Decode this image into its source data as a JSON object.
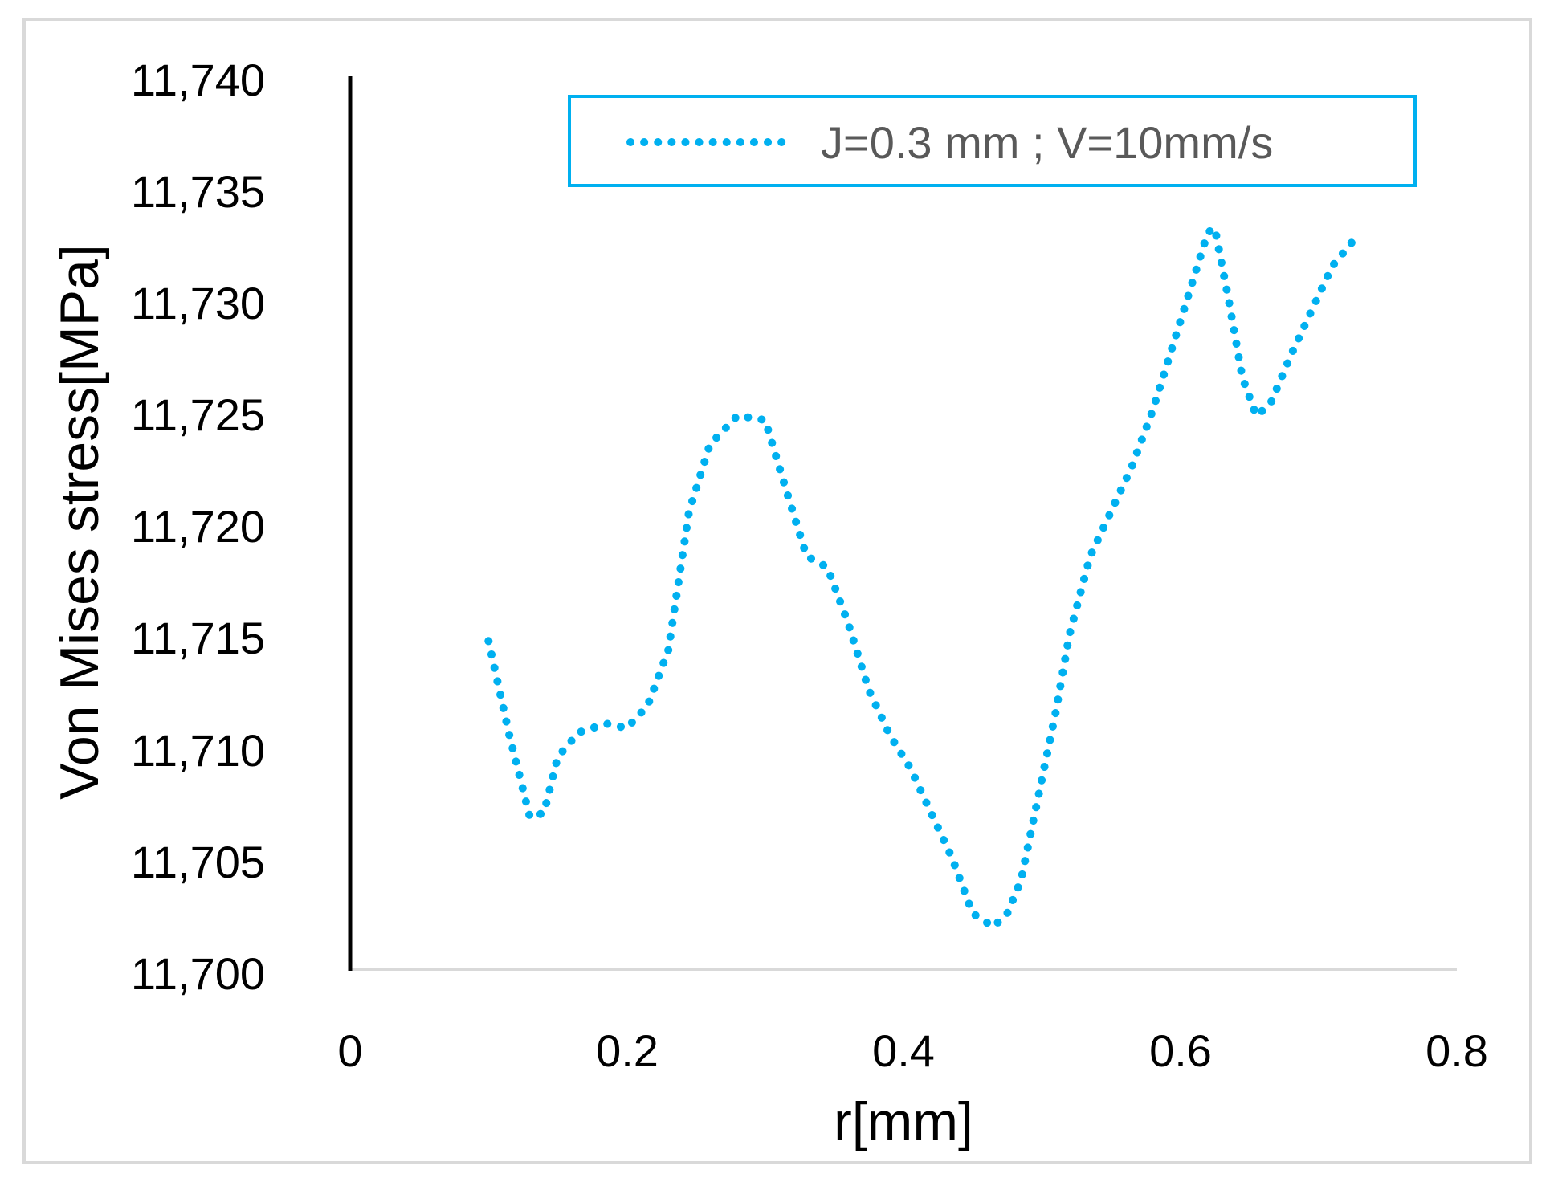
{
  "chart_data": {
    "type": "line",
    "title": "",
    "xlabel": "r[mm]",
    "ylabel": "Von Mises stress[MPa]",
    "xlim": [
      0,
      0.8
    ],
    "ylim": [
      11700,
      11740
    ],
    "x_ticks": [
      "0",
      "0.2",
      "0.4",
      "0.6",
      "0.8"
    ],
    "y_ticks": [
      "11,700",
      "11,705",
      "11,710",
      "11,715",
      "11,720",
      "11,725",
      "11,730",
      "11,735",
      "11,740"
    ],
    "grid": false,
    "legend_position": "top-right",
    "series": [
      {
        "name": "J=0.3 mm ; V=10mm/s",
        "color": "#00b0f0",
        "line_style": "dotted",
        "x": [
          0.1,
          0.115,
          0.13,
          0.14,
          0.15,
          0.165,
          0.185,
          0.2,
          0.215,
          0.23,
          0.245,
          0.26,
          0.28,
          0.3,
          0.315,
          0.33,
          0.345,
          0.36,
          0.375,
          0.39,
          0.405,
          0.42,
          0.435,
          0.45,
          0.465,
          0.475,
          0.485,
          0.5,
          0.51,
          0.52,
          0.535,
          0.55,
          0.565,
          0.58,
          0.595,
          0.61,
          0.62,
          0.625,
          0.635,
          0.645,
          0.655,
          0.665,
          0.68,
          0.695,
          0.71,
          0.73
        ],
        "y": [
          11714.7,
          11710.5,
          11706.8,
          11707.0,
          11709.5,
          11710.6,
          11711.0,
          11710.8,
          11711.8,
          11714.3,
          11720.5,
          11723.5,
          11724.8,
          11724.6,
          11721.5,
          11718.5,
          11718.0,
          11715.5,
          11712.5,
          11710.5,
          11709.0,
          11707.0,
          11705.0,
          11702.5,
          11701.9,
          11702.5,
          11704.0,
          11708.5,
          11711.5,
          11715.0,
          11718.5,
          11720.5,
          11722.5,
          11725.0,
          11728.0,
          11731.0,
          11733.0,
          11733.2,
          11730.0,
          11726.5,
          11724.8,
          11725.3,
          11727.5,
          11729.5,
          11731.5,
          11733.0
        ]
      }
    ]
  }
}
